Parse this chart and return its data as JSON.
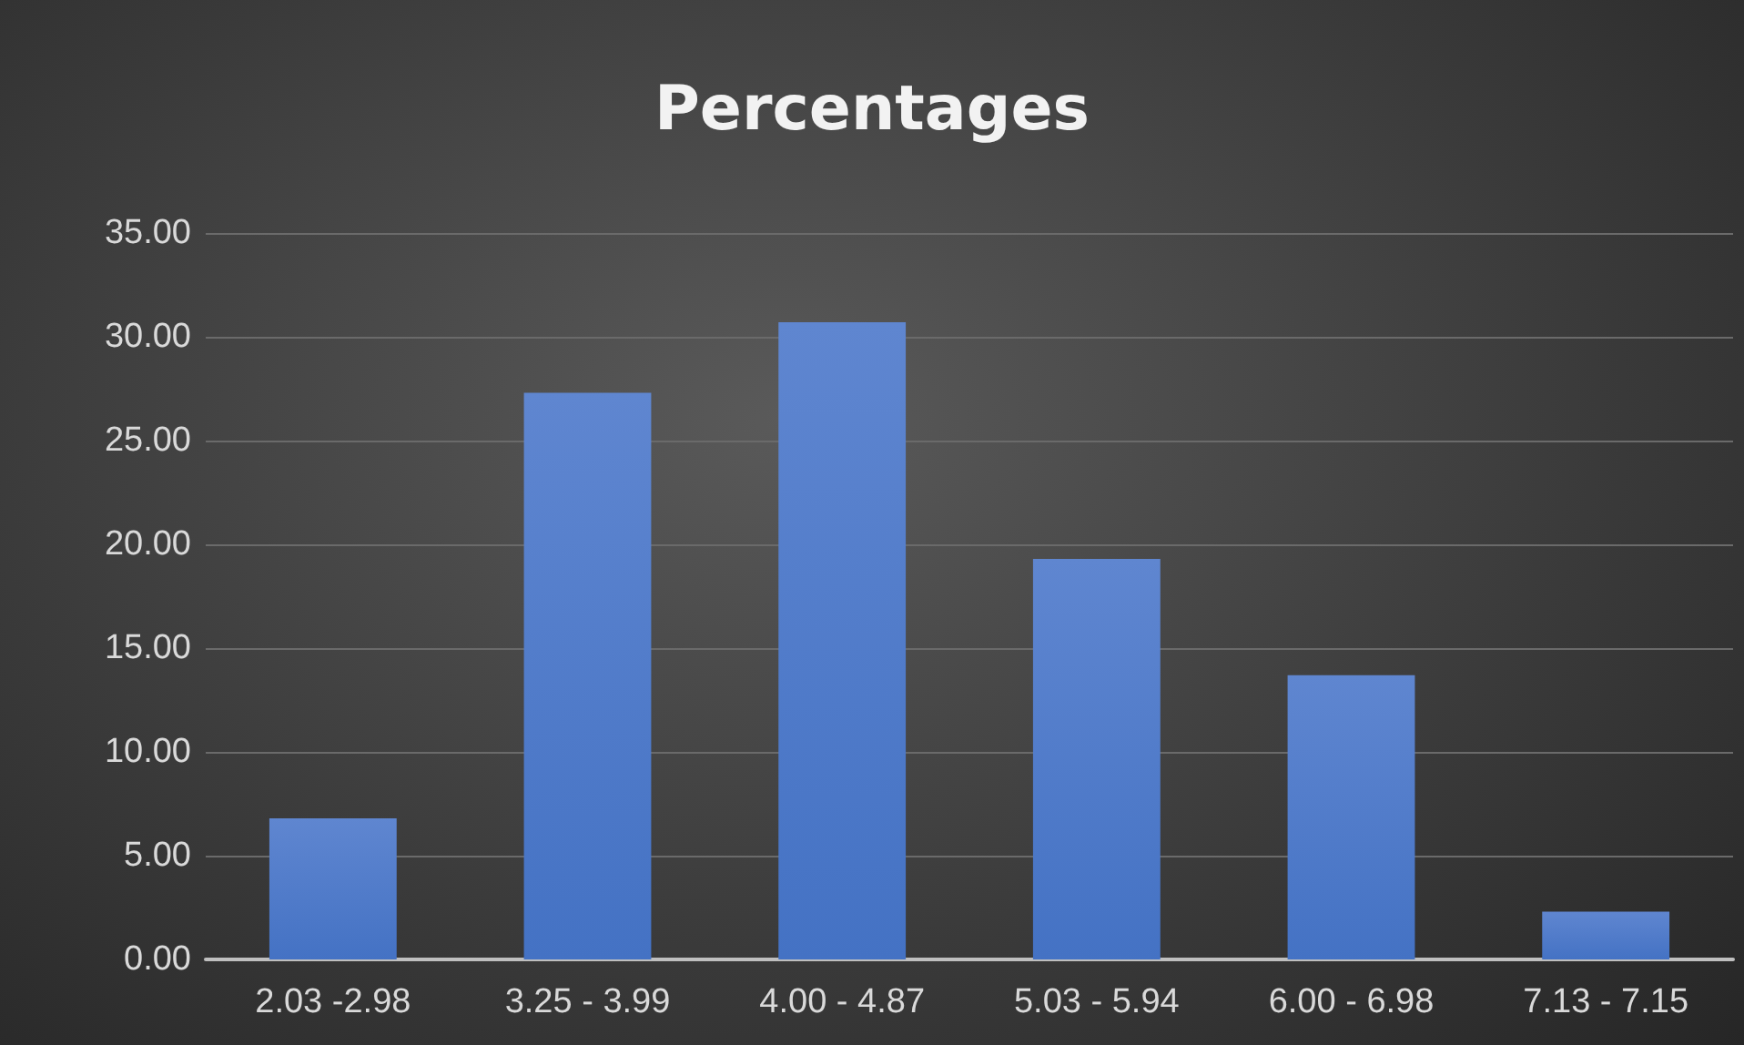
{
  "chart_data": {
    "type": "bar",
    "title": "Percentages",
    "categories": [
      "2.03 -2.98",
      "3.25 - 3.99",
      "4.00 - 4.87",
      "5.03 - 5.94",
      "6.00 - 6.98",
      "7.13 - 7.15"
    ],
    "values": [
      6.8,
      27.3,
      30.7,
      19.3,
      13.7,
      2.3
    ],
    "color": "#4472c4",
    "ylim": [
      0,
      35
    ],
    "yticks": [
      {
        "value": 0,
        "label": "0.00"
      },
      {
        "value": 5,
        "label": "5.00"
      },
      {
        "value": 10,
        "label": "10.00"
      },
      {
        "value": 15,
        "label": "15.00"
      },
      {
        "value": 20,
        "label": "20.00"
      },
      {
        "value": 25,
        "label": "25.00"
      },
      {
        "value": 30,
        "label": "30.00"
      },
      {
        "value": 35,
        "label": "35.00"
      }
    ],
    "grid": "y"
  }
}
